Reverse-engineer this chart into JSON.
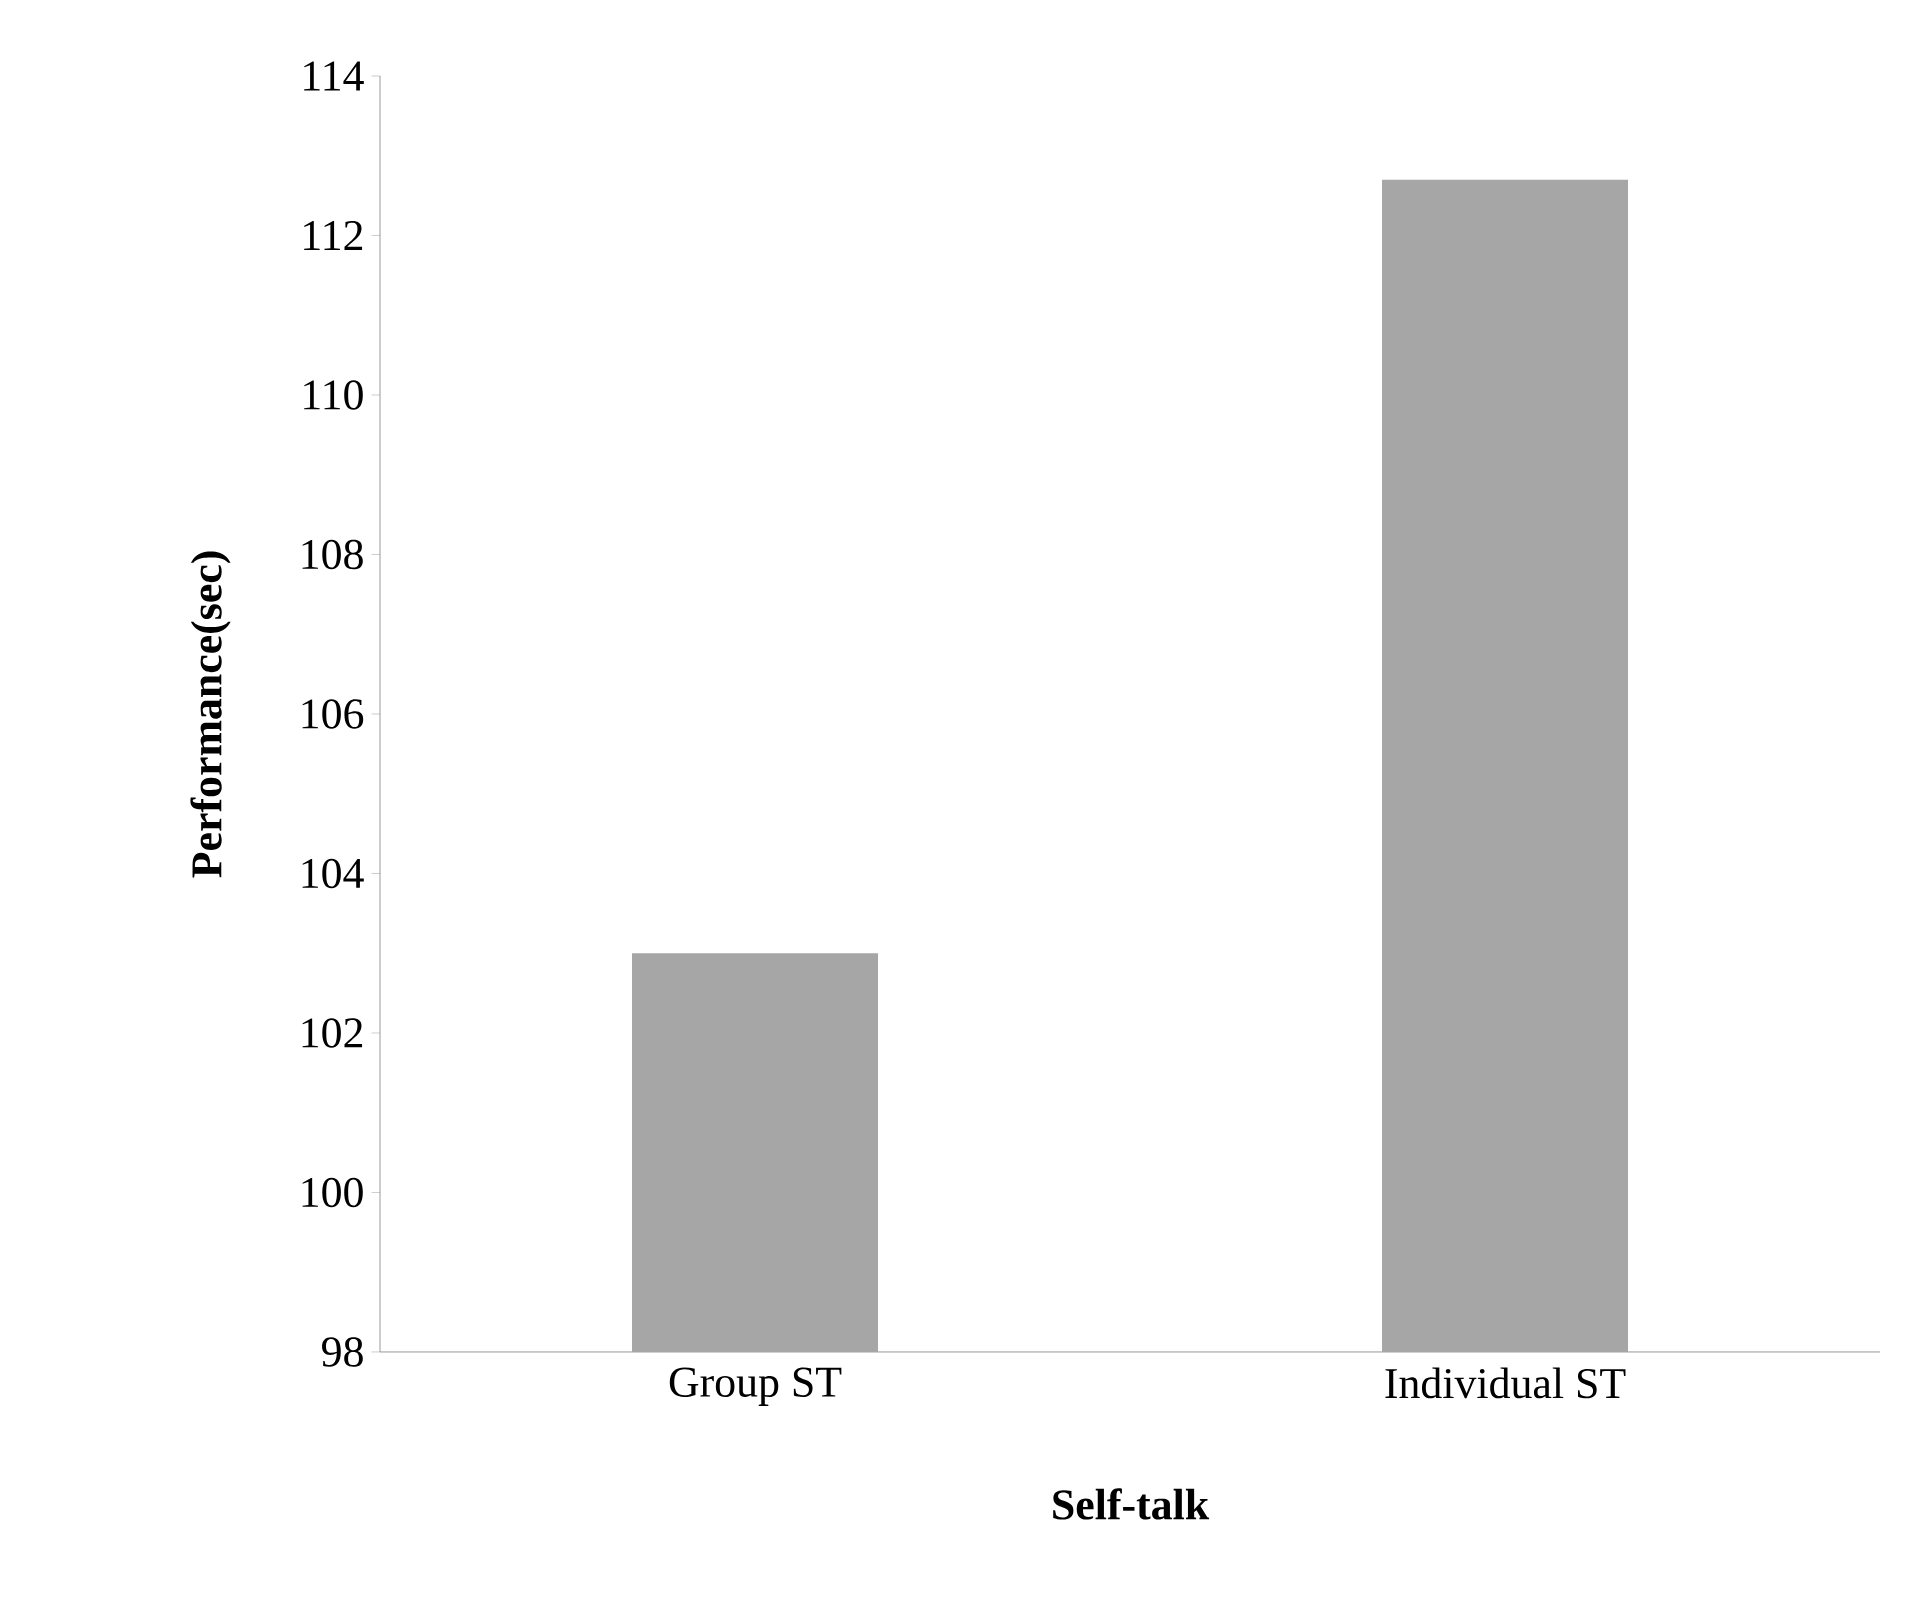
{
  "chart_data": {
    "type": "bar",
    "xlabel": "Self-talk",
    "ylabel": "Performance(sec)",
    "categories": [
      "Group ST",
      "Individual ST"
    ],
    "values": [
      103.0,
      112.7
    ],
    "color": "#a6a6a6",
    "ylim": [
      98,
      114
    ],
    "yticks": [
      98,
      100,
      102,
      104,
      106,
      108,
      110,
      112,
      114
    ],
    "grid": false
  }
}
